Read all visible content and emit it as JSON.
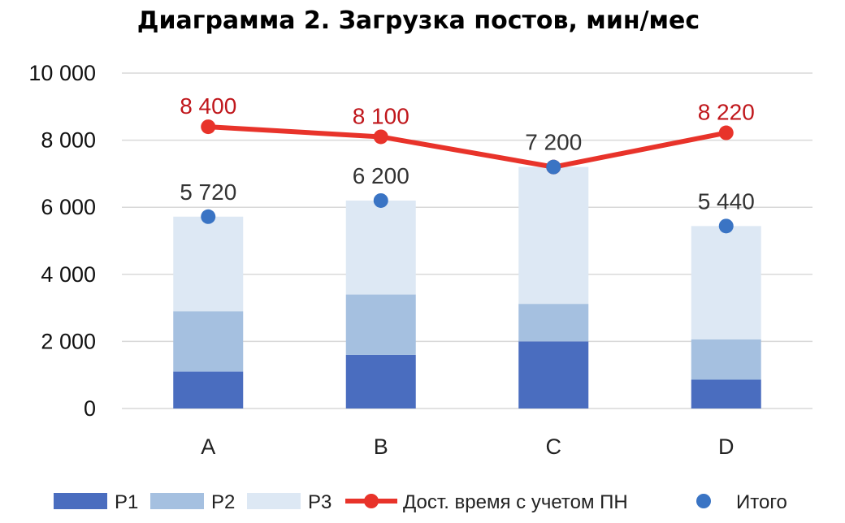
{
  "chart_data": {
    "type": "bar",
    "title": "Диаграмма 2. Загрузка постов, мин/мес",
    "categories": [
      "A",
      "B",
      "C",
      "D"
    ],
    "ylim": [
      0,
      10000
    ],
    "yticks": [
      0,
      2000,
      4000,
      6000,
      8000,
      10000
    ],
    "ytick_labels": [
      "0",
      "2 000",
      "4 000",
      "6 000",
      "8 000",
      "10 000"
    ],
    "grid": true,
    "legend_position": "bottom",
    "series": [
      {
        "name": "P1",
        "kind": "bar-stacked",
        "color": "#4a6dbf",
        "values": [
          1100,
          1600,
          2000,
          860
        ]
      },
      {
        "name": "P2",
        "kind": "bar-stacked",
        "color": "#a5c0e0",
        "values": [
          1800,
          1800,
          1120,
          1200
        ]
      },
      {
        "name": "P3",
        "kind": "bar-stacked",
        "color": "#dde8f4",
        "values": [
          2820,
          2800,
          4080,
          3380
        ]
      },
      {
        "name": "Дост. время с учетом ПН",
        "kind": "line",
        "color": "#e8332a",
        "values": [
          8400,
          8100,
          7200,
          8220
        ],
        "labels": [
          "8 400",
          "8 100",
          "",
          "8 220"
        ]
      },
      {
        "name": "Итого",
        "kind": "scatter",
        "color": "#3a74c4",
        "values": [
          5720,
          6200,
          7200,
          5440
        ],
        "labels": [
          "5 720",
          "6 200",
          "7 200",
          "5 440"
        ]
      }
    ]
  }
}
